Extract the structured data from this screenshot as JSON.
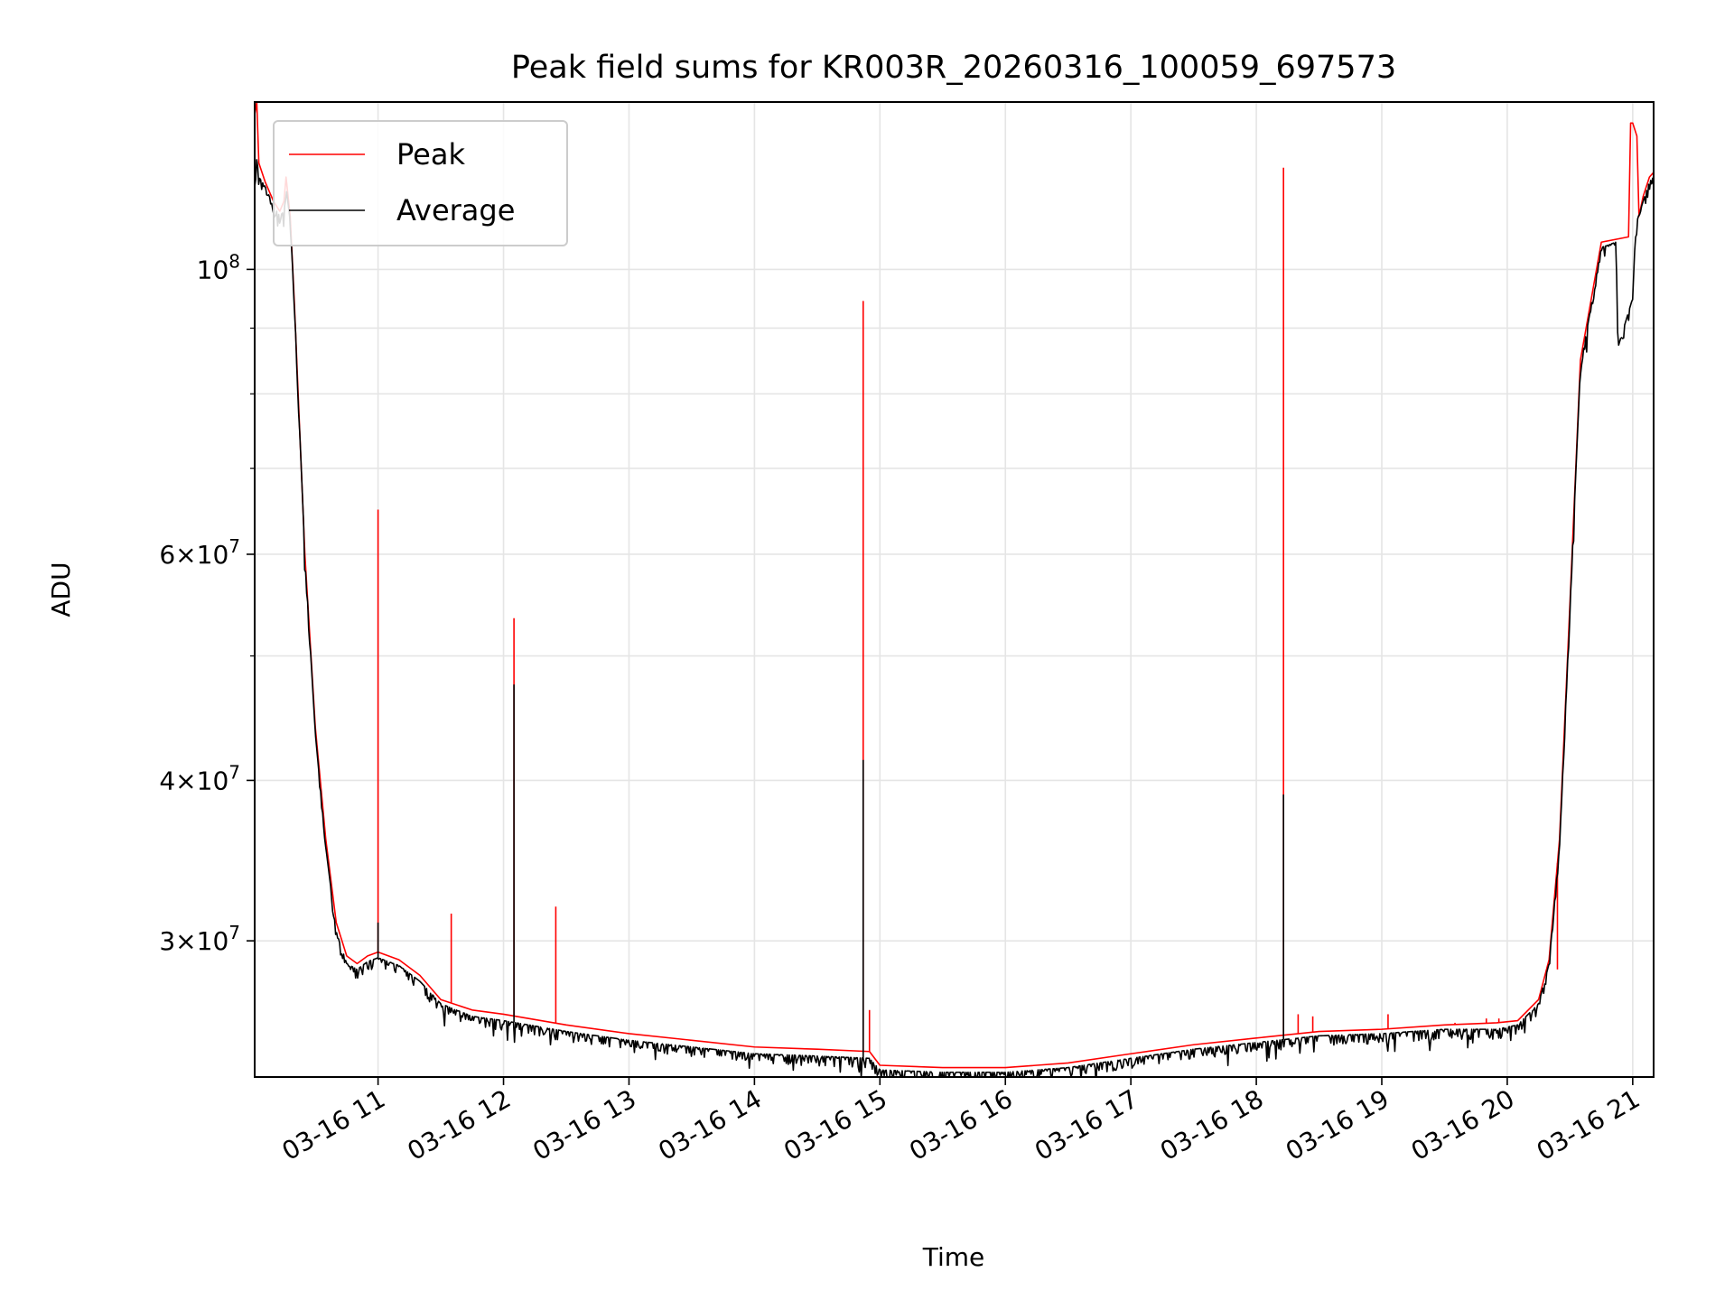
{
  "chart_data": {
    "type": "line",
    "title": "Peak field sums for KR003R_20260316_100059_697573",
    "xlabel": "Time",
    "ylabel": "ADU",
    "y_scale": "log",
    "xlim": [
      "2026-03-16 10:01",
      "2026-03-16 21:10"
    ],
    "ylim": [
      23500000,
      135000000
    ],
    "grid": true,
    "legend_position": "top-left",
    "x_ticks": [
      {
        "t": "2026-03-16 11:00",
        "label": "03-16 11"
      },
      {
        "t": "2026-03-16 12:00",
        "label": "03-16 12"
      },
      {
        "t": "2026-03-16 13:00",
        "label": "03-16 13"
      },
      {
        "t": "2026-03-16 14:00",
        "label": "03-16 14"
      },
      {
        "t": "2026-03-16 15:00",
        "label": "03-16 15"
      },
      {
        "t": "2026-03-16 16:00",
        "label": "03-16 16"
      },
      {
        "t": "2026-03-16 17:00",
        "label": "03-16 17"
      },
      {
        "t": "2026-03-16 18:00",
        "label": "03-16 18"
      },
      {
        "t": "2026-03-16 19:00",
        "label": "03-16 19"
      },
      {
        "t": "2026-03-16 20:00",
        "label": "03-16 20"
      },
      {
        "t": "2026-03-16 21:00",
        "label": "03-16 21"
      }
    ],
    "y_ticks_major": [
      {
        "value": 30000000,
        "mantissa": "3",
        "exponent": "7"
      },
      {
        "value": 40000000,
        "mantissa": "4",
        "exponent": "7"
      },
      {
        "value": 60000000,
        "mantissa": "6",
        "exponent": "7"
      },
      {
        "value": 100000000,
        "mantissa": "",
        "exponent": "8"
      }
    ],
    "y_ticks_minor": [
      50000000,
      70000000,
      80000000,
      90000000
    ],
    "series": [
      {
        "name": "Peak",
        "color": "#ff0000",
        "x": [
          "2026-03-16 10:01",
          "2026-03-16 10:02",
          "2026-03-16 10:03",
          "2026-03-16 10:06",
          "2026-03-16 10:10",
          "2026-03-16 10:13",
          "2026-03-16 10:15",
          "2026-03-16 10:16",
          "2026-03-16 10:18",
          "2026-03-16 10:20",
          "2026-03-16 10:25",
          "2026-03-16 10:30",
          "2026-03-16 10:35",
          "2026-03-16 10:40",
          "2026-03-16 10:45",
          "2026-03-16 10:50",
          "2026-03-16 10:55",
          "2026-03-16 11:00",
          "2026-03-16 11:10",
          "2026-03-16 11:20",
          "2026-03-16 11:30",
          "2026-03-16 11:45",
          "2026-03-16 12:00",
          "2026-03-16 12:30",
          "2026-03-16 13:00",
          "2026-03-16 13:30",
          "2026-03-16 14:00",
          "2026-03-16 14:30",
          "2026-03-16 14:55",
          "2026-03-16 15:00",
          "2026-03-16 15:30",
          "2026-03-16 16:00",
          "2026-03-16 16:30",
          "2026-03-16 17:00",
          "2026-03-16 17:30",
          "2026-03-16 18:00",
          "2026-03-16 18:30",
          "2026-03-16 19:00",
          "2026-03-16 19:30",
          "2026-03-16 19:55",
          "2026-03-16 20:05",
          "2026-03-16 20:15",
          "2026-03-16 20:20",
          "2026-03-16 20:25",
          "2026-03-16 20:30",
          "2026-03-16 20:35",
          "2026-03-16 20:45",
          "2026-03-16 20:58",
          "2026-03-16 20:59",
          "2026-03-16 21:00",
          "2026-03-16 21:02",
          "2026-03-16 21:03",
          "2026-03-16 21:05",
          "2026-03-16 21:08",
          "2026-03-16 21:10"
        ],
        "y": [
          132000000,
          135000000,
          121000000,
          117000000,
          113000000,
          111000000,
          113000000,
          118000000,
          110000000,
          94000000,
          60000000,
          44000000,
          36000000,
          31000000,
          29200000,
          28800000,
          29200000,
          29400000,
          29000000,
          28200000,
          27000000,
          26500000,
          26300000,
          25800000,
          25400000,
          25100000,
          24800000,
          24700000,
          24600000,
          24000000,
          23900000,
          23900000,
          24100000,
          24500000,
          24900000,
          25200000,
          25500000,
          25600000,
          25800000,
          25900000,
          26000000,
          27000000,
          29000000,
          36000000,
          55000000,
          85000000,
          105000000,
          106000000,
          130000000,
          130000000,
          127000000,
          110000000,
          114000000,
          118000000,
          119000000
        ],
        "spikes": [
          {
            "x": "2026-03-16 11:00",
            "y": 65000000
          },
          {
            "x": "2026-03-16 11:35",
            "y": 31500000
          },
          {
            "x": "2026-03-16 12:05",
            "y": 53500000
          },
          {
            "x": "2026-03-16 12:25",
            "y": 31900000
          },
          {
            "x": "2026-03-16 14:52",
            "y": 94500000
          },
          {
            "x": "2026-03-16 14:55",
            "y": 26500000
          },
          {
            "x": "2026-03-16 18:13",
            "y": 120000000
          },
          {
            "x": "2026-03-16 18:20",
            "y": 26300000
          },
          {
            "x": "2026-03-16 18:27",
            "y": 26200000
          },
          {
            "x": "2026-03-16 19:03",
            "y": 26300000
          },
          {
            "x": "2026-03-16 19:35",
            "y": 25900000
          },
          {
            "x": "2026-03-16 19:50",
            "y": 26100000
          },
          {
            "x": "2026-03-16 19:56",
            "y": 26100000
          },
          {
            "x": "2026-03-16 20:24",
            "y": 28500000
          }
        ]
      },
      {
        "name": "Average",
        "color": "#000000",
        "x": [
          "2026-03-16 10:01",
          "2026-03-16 10:02",
          "2026-03-16 10:03",
          "2026-03-16 10:06",
          "2026-03-16 10:10",
          "2026-03-16 10:13",
          "2026-03-16 10:15",
          "2026-03-16 10:16",
          "2026-03-16 10:18",
          "2026-03-16 10:20",
          "2026-03-16 10:25",
          "2026-03-16 10:30",
          "2026-03-16 10:35",
          "2026-03-16 10:40",
          "2026-03-16 10:45",
          "2026-03-16 10:50",
          "2026-03-16 10:55",
          "2026-03-16 11:00",
          "2026-03-16 11:10",
          "2026-03-16 11:20",
          "2026-03-16 11:30",
          "2026-03-16 11:45",
          "2026-03-16 12:00",
          "2026-03-16 12:30",
          "2026-03-16 13:00",
          "2026-03-16 13:30",
          "2026-03-16 14:00",
          "2026-03-16 14:30",
          "2026-03-16 14:55",
          "2026-03-16 15:00",
          "2026-03-16 15:30",
          "2026-03-16 16:00",
          "2026-03-16 16:30",
          "2026-03-16 17:00",
          "2026-03-16 17:30",
          "2026-03-16 18:00",
          "2026-03-16 18:30",
          "2026-03-16 19:00",
          "2026-03-16 19:30",
          "2026-03-16 19:55",
          "2026-03-16 20:05",
          "2026-03-16 20:15",
          "2026-03-16 20:20",
          "2026-03-16 20:25",
          "2026-03-16 20:30",
          "2026-03-16 20:35",
          "2026-03-16 20:45",
          "2026-03-16 20:52",
          "2026-03-16 20:53",
          "2026-03-16 21:00",
          "2026-03-16 21:01",
          "2026-03-16 21:02",
          "2026-03-16 21:05",
          "2026-03-16 21:08",
          "2026-03-16 21:10"
        ],
        "y": [
          116000000,
          122000000,
          118000000,
          116000000,
          112000000,
          110000000,
          111000000,
          116000000,
          109000000,
          94000000,
          60000000,
          43500000,
          35500000,
          30500000,
          28800000,
          28500000,
          28900000,
          29100000,
          28700000,
          27900000,
          26800000,
          26200000,
          26000000,
          25500000,
          25100000,
          24800000,
          24500000,
          24400000,
          24300000,
          23800000,
          23700000,
          23700000,
          23900000,
          24300000,
          24700000,
          25000000,
          25300000,
          25400000,
          25600000,
          25600000,
          25800000,
          26800000,
          28800000,
          35500000,
          54500000,
          84000000,
          104000000,
          105000000,
          87000000,
          95000000,
          104000000,
          109000000,
          113000000,
          117000000,
          118000000
        ],
        "spikes": [
          {
            "x": "2026-03-16 11:00",
            "y": 31000000
          },
          {
            "x": "2026-03-16 12:05",
            "y": 47500000
          },
          {
            "x": "2026-03-16 14:52",
            "y": 41500000
          },
          {
            "x": "2026-03-16 18:13",
            "y": 39000000
          }
        ],
        "noise_band": 0.018
      }
    ]
  }
}
